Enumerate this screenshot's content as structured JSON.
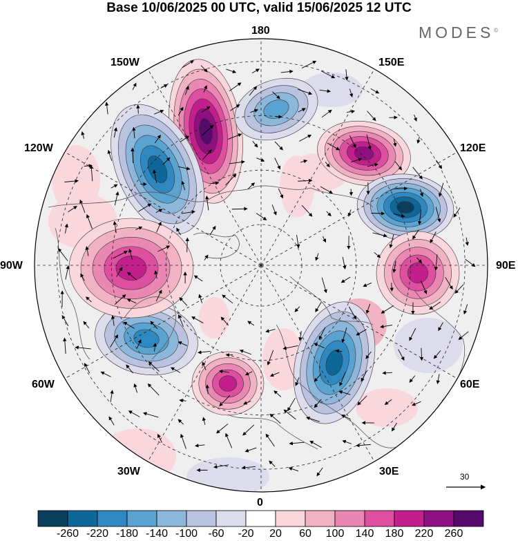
{
  "header": {
    "title": "Base 10/06/2025 00 UTC, valid 15/06/2025 12 UTC",
    "brand": "MODES",
    "brand_mark": "©"
  },
  "map": {
    "projection": "north-polar-stereographic",
    "meridian_labels": {
      "m180": "180",
      "m150e": "150E",
      "m120e": "120E",
      "m90e": "90E",
      "m60e": "60E",
      "m30e": "30E",
      "m0": "0",
      "m30w": "30W",
      "m60w": "60W",
      "m90w": "90W",
      "m120w": "120W",
      "m150w": "150W"
    },
    "wind_reference": {
      "value": "30",
      "icon": "arrow-right-icon"
    },
    "anomaly_centers": [
      {
        "sign": "positive",
        "longitude": "170W",
        "value": 260
      },
      {
        "sign": "negative",
        "longitude": "145W",
        "value": -220
      },
      {
        "sign": "negative",
        "longitude": "170E",
        "value": -140
      },
      {
        "sign": "positive",
        "longitude": "135E",
        "value": 220
      },
      {
        "sign": "negative",
        "longitude": "110E",
        "value": -260
      },
      {
        "sign": "positive",
        "longitude": "85E",
        "value": 180
      },
      {
        "sign": "negative",
        "longitude": "30E",
        "value": -220
      },
      {
        "sign": "positive",
        "longitude": "15W",
        "value": 180
      },
      {
        "sign": "negative",
        "longitude": "70W",
        "value": -180
      },
      {
        "sign": "positive",
        "longitude": "95W",
        "value": 180
      }
    ]
  },
  "legend": {
    "ticks": [
      "-260",
      "-220",
      "-180",
      "-140",
      "-100",
      "-60",
      "-20",
      "20",
      "60",
      "100",
      "140",
      "180",
      "220",
      "260"
    ],
    "colors": [
      "#0a3f5e",
      "#0f6699",
      "#2f88bf",
      "#5aa3d0",
      "#8db7da",
      "#b9c3df",
      "#dcdcec",
      "#ffffff",
      "#f9d7dc",
      "#f1b3c3",
      "#ea87b3",
      "#de4f9f",
      "#c21f8c",
      "#8e0f7f",
      "#560a6b"
    ]
  }
}
